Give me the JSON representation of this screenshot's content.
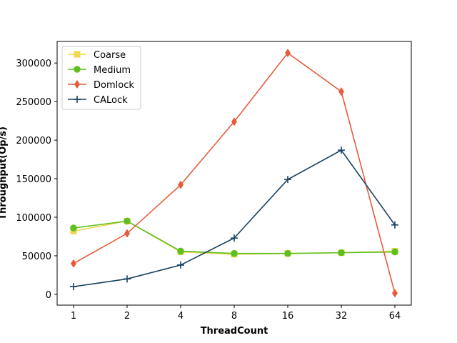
{
  "chart_data": {
    "type": "line",
    "title": "",
    "xlabel": "ThreadCount",
    "ylabel": "Throughput(Op/s)",
    "categories": [
      "1",
      "2",
      "4",
      "8",
      "16",
      "32",
      "64"
    ],
    "ylim": [
      -14000,
      328000
    ],
    "yticks": [
      0,
      50000,
      100000,
      150000,
      200000,
      250000,
      300000
    ],
    "ytick_labels": [
      "0",
      "50000",
      "100000",
      "150000",
      "200000",
      "250000",
      "300000"
    ],
    "grid": false,
    "legend_position": "top-left",
    "series": [
      {
        "name": "Coarse",
        "color": "#f2d750",
        "marker": "square",
        "values": [
          82000,
          95000,
          55000,
          52000,
          53000,
          54000,
          56000
        ]
      },
      {
        "name": "Medium",
        "color": "#5fbf1f",
        "marker": "circle",
        "values": [
          86000,
          95000,
          56000,
          53000,
          53000,
          54000,
          55000
        ]
      },
      {
        "name": "Domlock",
        "color": "#e65c3b",
        "marker": "diamond",
        "values": [
          40000,
          79000,
          142000,
          224000,
          313000,
          263000,
          1500
        ]
      },
      {
        "name": "CALock",
        "color": "#17405e",
        "marker": "plus",
        "values": [
          10000,
          20000,
          38000,
          73000,
          149000,
          187000,
          90000
        ]
      }
    ]
  }
}
